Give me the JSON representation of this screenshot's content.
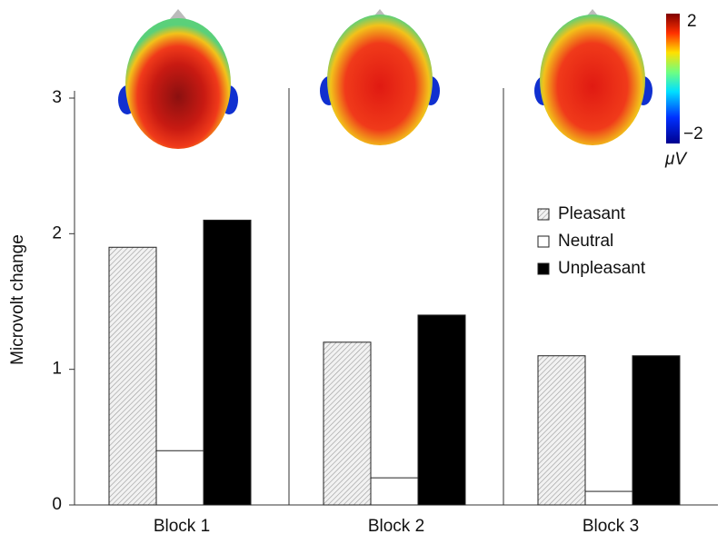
{
  "chart_data": {
    "type": "bar",
    "y_label": "Microvolt change",
    "categories": [
      "Block 1",
      "Block 2",
      "Block 3"
    ],
    "series": [
      {
        "name": "Pleasant",
        "color": "#9a9a9a",
        "pattern": "hatch",
        "values": [
          1.9,
          1.2,
          1.1
        ]
      },
      {
        "name": "Neutral",
        "color": "#ffffff",
        "values": [
          0.4,
          0.2,
          0.1
        ]
      },
      {
        "name": "Unpleasant",
        "color": "#000000",
        "values": [
          2.1,
          1.4,
          1.1
        ]
      }
    ],
    "ylim": [
      0,
      3
    ],
    "yticks": [
      0,
      1,
      2,
      3
    ],
    "colorbar": {
      "max_label": "2",
      "min_label": "−2",
      "unit": "μV"
    }
  }
}
